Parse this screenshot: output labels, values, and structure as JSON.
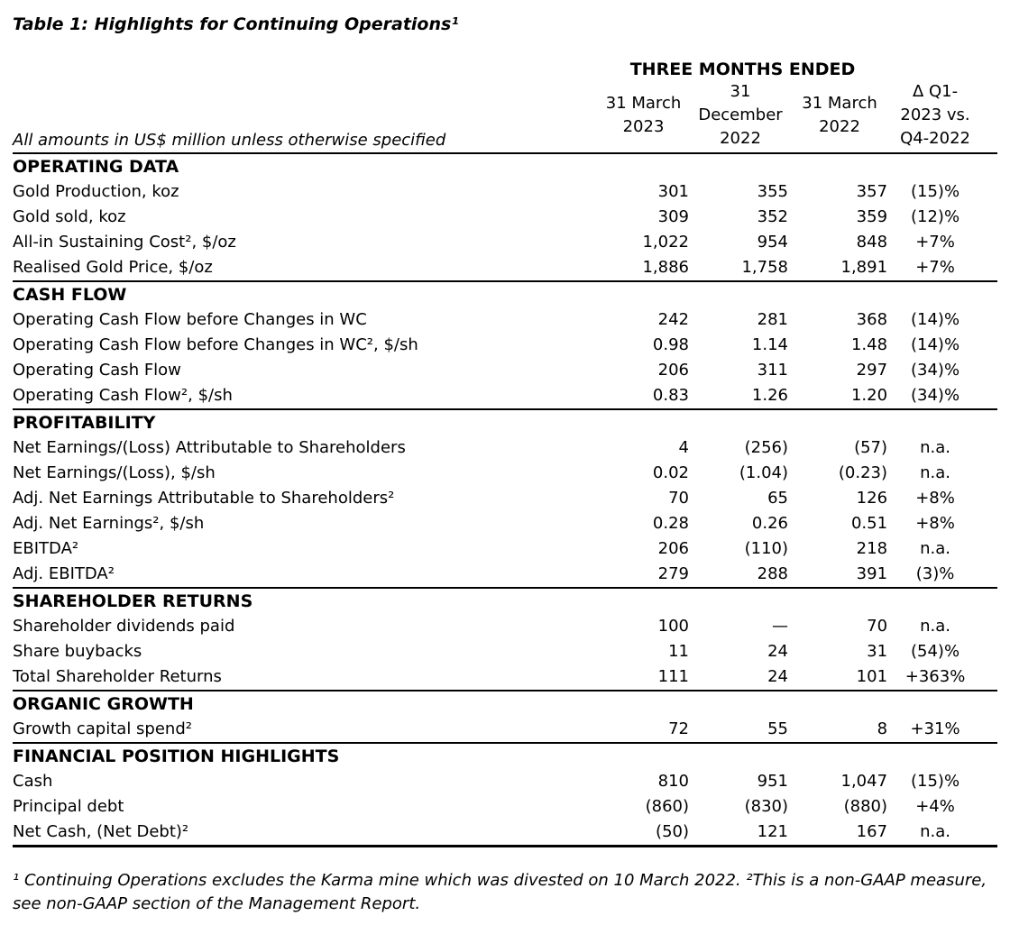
{
  "title": "Table 1: Highlights for Continuing Operations¹",
  "table": {
    "period_header": "THREE MONTHS ENDED",
    "note": "All amounts in US$ million unless otherwise specified",
    "columns": [
      "31 March\n2023",
      "31\nDecember\n2022",
      "31 March\n2022",
      "Δ Q1-\n2023 vs.\nQ4-2022"
    ],
    "sections": [
      {
        "header": "OPERATING DATA",
        "rows": [
          {
            "label": "Gold Production, koz",
            "values": [
              "301",
              "355",
              "357",
              "(15)%"
            ]
          },
          {
            "label": "Gold sold, koz",
            "values": [
              "309",
              "352",
              "359",
              "(12)%"
            ]
          },
          {
            "label": "All-in Sustaining Cost², $/oz",
            "values": [
              "1,022",
              "954",
              "848",
              "+7%"
            ]
          },
          {
            "label": "Realised Gold Price, $/oz",
            "values": [
              "1,886",
              "1,758",
              "1,891",
              "+7%"
            ]
          }
        ]
      },
      {
        "header": "CASH FLOW",
        "rows": [
          {
            "label": "Operating Cash Flow before Changes in WC",
            "values": [
              "242",
              "281",
              "368",
              "(14)%"
            ]
          },
          {
            "label": "Operating Cash Flow before Changes in WC², $/sh",
            "values": [
              "0.98",
              "1.14",
              "1.48",
              "(14)%"
            ]
          },
          {
            "label": "Operating Cash Flow",
            "values": [
              "206",
              "311",
              "297",
              "(34)%"
            ]
          },
          {
            "label": "Operating Cash Flow², $/sh",
            "values": [
              "0.83",
              "1.26",
              "1.20",
              "(34)%"
            ]
          }
        ]
      },
      {
        "header": "PROFITABILITY",
        "rows": [
          {
            "label": "Net Earnings/(Loss) Attributable to Shareholders",
            "values": [
              "4",
              "(256)",
              "(57)",
              "n.a."
            ]
          },
          {
            "label": "Net Earnings/(Loss), $/sh",
            "values": [
              "0.02",
              "(1.04)",
              "(0.23)",
              "n.a."
            ]
          },
          {
            "label": "Adj. Net Earnings Attributable to Shareholders²",
            "values": [
              "70",
              "65",
              "126",
              "+8%"
            ]
          },
          {
            "label": "Adj. Net Earnings², $/sh",
            "values": [
              "0.28",
              "0.26",
              "0.51",
              "+8%"
            ]
          },
          {
            "label": "EBITDA²",
            "values": [
              "206",
              "(110)",
              "218",
              "n.a."
            ]
          },
          {
            "label": "Adj. EBITDA²",
            "values": [
              "279",
              "288",
              "391",
              "(3)%"
            ]
          }
        ]
      },
      {
        "header": "SHAREHOLDER RETURNS",
        "rows": [
          {
            "label": "Shareholder dividends paid",
            "values": [
              "100",
              "—",
              "70",
              "n.a."
            ]
          },
          {
            "label": "Share buybacks",
            "values": [
              "11",
              "24",
              "31",
              "(54)%"
            ]
          },
          {
            "label": "Total Shareholder Returns",
            "values": [
              "111",
              "24",
              "101",
              "+363%"
            ]
          }
        ]
      },
      {
        "header": "ORGANIC GROWTH",
        "rows": [
          {
            "label": "Growth capital spend²",
            "values": [
              "72",
              "55",
              "8",
              "+31%"
            ]
          }
        ]
      },
      {
        "header": "FINANCIAL POSITION HIGHLIGHTS",
        "rows": [
          {
            "label": "Cash",
            "values": [
              "810",
              "951",
              "1,047",
              "(15)%"
            ]
          },
          {
            "label": "Principal debt",
            "values": [
              "(860)",
              "(830)",
              "(880)",
              "+4%"
            ]
          },
          {
            "label": "Net Cash, (Net Debt)²",
            "values": [
              "(50)",
              "121",
              "167",
              "n.a."
            ]
          }
        ]
      }
    ]
  },
  "footnote": "¹ Continuing Operations excludes the Karma mine which was divested on 10 March 2022. ²This is a non-GAAP measure, see non-GAAP section of the Management Report."
}
